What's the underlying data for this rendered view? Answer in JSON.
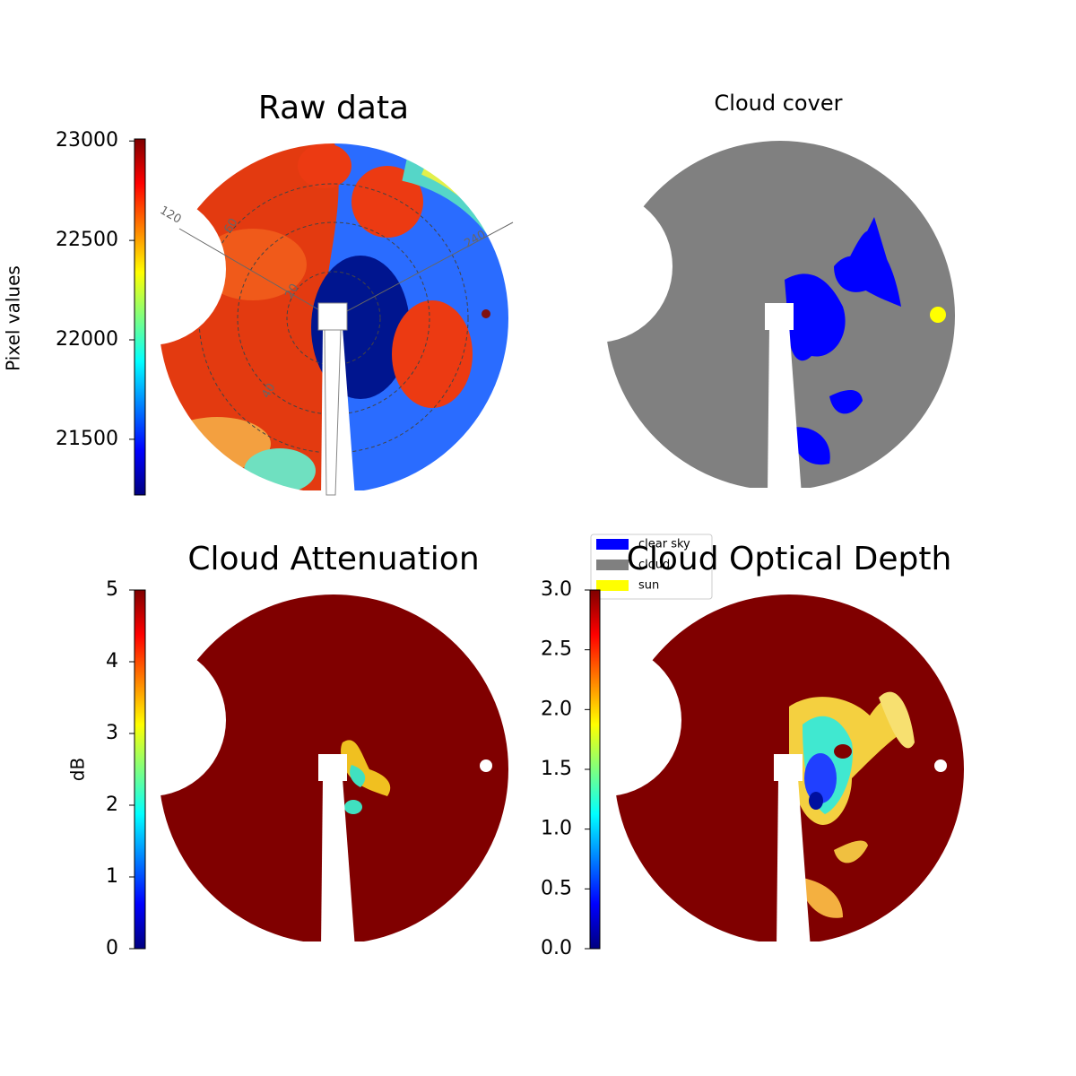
{
  "chart_data": [
    {
      "type": "image",
      "title": "Raw data",
      "colorbar_label": "Pixel values",
      "colormap": "jet",
      "clim": [
        21220,
        23010
      ],
      "ticks": [
        21500,
        22000,
        22500,
        23000
      ],
      "polar_labels": [
        "120",
        "60",
        "20",
        "40",
        "240"
      ]
    },
    {
      "type": "categorical",
      "title": "Cloud cover",
      "legend": [
        {
          "name": "clear sky",
          "color": "#0000ff"
        },
        {
          "name": "cloud",
          "color": "#808080"
        },
        {
          "name": "sun",
          "color": "#ffff00"
        }
      ]
    },
    {
      "type": "image",
      "title": "Cloud Attenuation",
      "colorbar_label": "dB",
      "colormap": "jet",
      "clim": [
        0,
        5
      ],
      "ticks": [
        0,
        1,
        2,
        3,
        4,
        5
      ]
    },
    {
      "type": "image",
      "title": "Cloud Optical Depth",
      "colormap": "jet",
      "clim": [
        0,
        3
      ],
      "ticks": [
        {
          "value": 0,
          "label": "0.0"
        },
        {
          "value": 0.5,
          "label": "0.5"
        },
        {
          "value": 1,
          "label": "1.0"
        },
        {
          "value": 1.5,
          "label": "1.5"
        },
        {
          "value": 2,
          "label": "2.0"
        },
        {
          "value": 2.5,
          "label": "2.5"
        },
        {
          "value": 3,
          "label": "3.0"
        }
      ]
    }
  ]
}
